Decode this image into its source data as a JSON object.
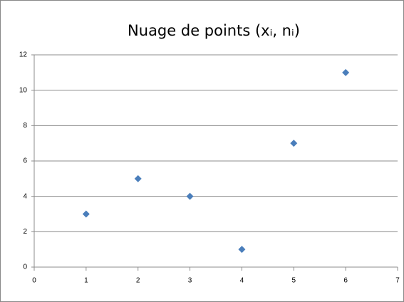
{
  "chart_data": {
    "type": "scatter",
    "title": "Nuage de points (xᵢ, nᵢ)",
    "x": [
      1,
      2,
      3,
      4,
      5,
      6
    ],
    "values": [
      3,
      5,
      4,
      1,
      7,
      11
    ],
    "color": "#4a7ebb",
    "xlim": [
      0,
      7
    ],
    "xticks": [
      0,
      1,
      2,
      3,
      4,
      5,
      6,
      7
    ],
    "ylim": [
      0,
      12
    ],
    "yticks": [
      0,
      2,
      4,
      6,
      8,
      10,
      12
    ],
    "grid": true
  }
}
